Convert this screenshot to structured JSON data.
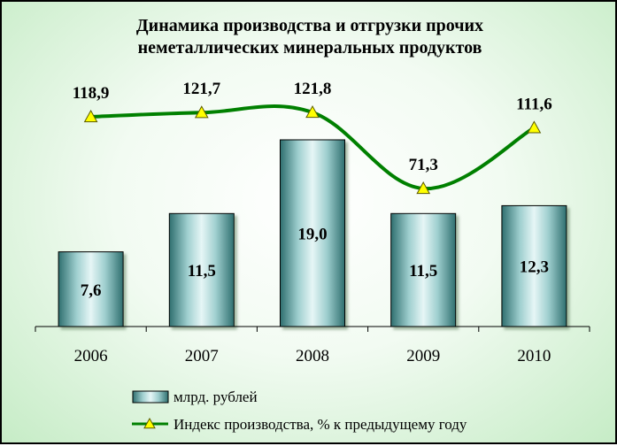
{
  "chart_data": {
    "type": "bar+line",
    "title": "Динамика производства и отгрузки прочих неметаллических минеральных продуктов",
    "title_lines": [
      "Динамика производства и отгрузки прочих",
      "неметаллических минеральных продуктов"
    ],
    "categories": [
      "2006",
      "2007",
      "2008",
      "2009",
      "2010"
    ],
    "series": [
      {
        "name": "млрд. рублей",
        "type": "bar",
        "values": [
          7.6,
          11.5,
          19.0,
          11.5,
          12.3
        ],
        "labels": [
          "7,6",
          "11,5",
          "19,0",
          "11,5",
          "12,3"
        ],
        "color": "#5f9e9e"
      },
      {
        "name": "Индекс производства, % к предыдущему году",
        "type": "line",
        "values": [
          118.9,
          121.7,
          121.8,
          71.3,
          111.6
        ],
        "labels": [
          "118,9",
          "121,7",
          "121,8",
          "71,3",
          "111,6"
        ],
        "color": "#008000",
        "marker_color": "#ffff00"
      }
    ],
    "legend_position": "bottom",
    "grid": false
  }
}
